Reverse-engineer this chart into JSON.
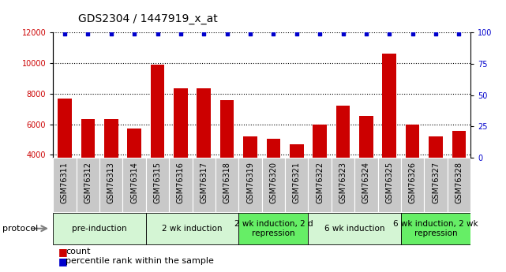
{
  "title": "GDS2304 / 1447919_x_at",
  "samples": [
    "GSM76311",
    "GSM76312",
    "GSM76313",
    "GSM76314",
    "GSM76315",
    "GSM76316",
    "GSM76317",
    "GSM76318",
    "GSM76319",
    "GSM76320",
    "GSM76321",
    "GSM76322",
    "GSM76323",
    "GSM76324",
    "GSM76325",
    "GSM76326",
    "GSM76327",
    "GSM76328"
  ],
  "counts": [
    7700,
    6350,
    6350,
    5700,
    9900,
    8350,
    8350,
    7600,
    5200,
    5050,
    4700,
    6000,
    7200,
    6550,
    10600,
    5950,
    5200,
    5550
  ],
  "percentile_ranks": [
    99,
    99,
    99,
    99,
    99,
    99,
    99,
    99,
    99,
    99,
    99,
    99,
    99,
    99,
    99,
    99,
    99,
    99
  ],
  "ylim_left": [
    3800,
    12000
  ],
  "ylim_right": [
    0,
    100
  ],
  "yticks_left": [
    4000,
    6000,
    8000,
    10000,
    12000
  ],
  "yticks_right": [
    0,
    25,
    50,
    75,
    100
  ],
  "bar_color": "#cc0000",
  "dot_color": "#0000cc",
  "groups": [
    {
      "label": "pre-induction",
      "start": 0,
      "end": 3,
      "color": "#d4f5d4"
    },
    {
      "label": "2 wk induction",
      "start": 4,
      "end": 7,
      "color": "#d4f5d4"
    },
    {
      "label": "2 wk induction, 2 d\nrepression",
      "start": 8,
      "end": 10,
      "color": "#66ee66"
    },
    {
      "label": "6 wk induction",
      "start": 11,
      "end": 14,
      "color": "#d4f5d4"
    },
    {
      "label": "6 wk induction, 2 wk\nrepression",
      "start": 15,
      "end": 17,
      "color": "#66ee66"
    }
  ],
  "legend_count_label": "count",
  "legend_pct_label": "percentile rank within the sample",
  "protocol_label": "protocol",
  "title_fontsize": 10,
  "tick_fontsize": 7,
  "group_fontsize": 7.5,
  "legend_fontsize": 8,
  "sample_box_color": "#c8c8c8",
  "background_color": "#ffffff"
}
